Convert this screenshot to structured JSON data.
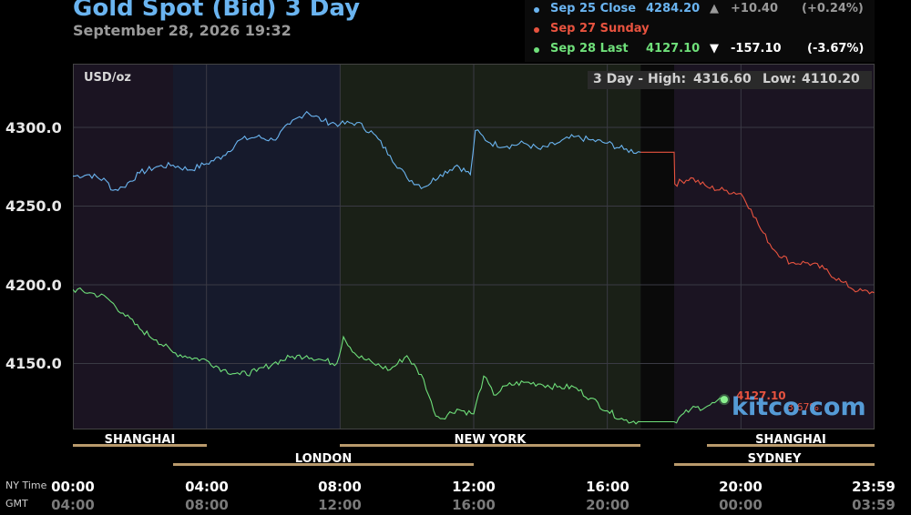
{
  "header": {
    "title": "Gold Spot (Bid) 3 Day",
    "timestamp": "September 28, 2026 19:32"
  },
  "legend": [
    {
      "label": "Sep 25 Close",
      "price": "4284.20",
      "arrow": "▲",
      "change": "+10.40",
      "pct": "(+0.24%)",
      "color": "#6ab4f0"
    },
    {
      "label": "Sep 27 Sunday",
      "price": "",
      "arrow": "",
      "change": "",
      "pct": "",
      "color": "#e8533f"
    },
    {
      "label": "Sep 28 Last",
      "price": "4127.10",
      "arrow": "▼",
      "change": "-157.10",
      "pct": "(-3.67%)",
      "color": "#6fe07a"
    }
  ],
  "plot": {
    "unit": "USD/oz",
    "range_label": "3 Day - High:",
    "high": "4316.60",
    "low_label": "Low:",
    "low": "4110.20",
    "watermark": "kitco.com",
    "last_label": "4127.10",
    "last_pct": "-3.67%"
  },
  "markets": {
    "shanghai": "SHANGHAI",
    "new_york": "NEW YORK",
    "shanghai_2": "SHANGHAI",
    "london": "LONDON",
    "sydney": "SYDNEY"
  },
  "axis": {
    "ny_label": "NY Time",
    "gmt_label": "GMT",
    "ny_ticks": [
      "00:00",
      "04:00",
      "08:00",
      "12:00",
      "16:00",
      "20:00",
      "23:59"
    ],
    "gmt_ticks": [
      "04:00",
      "08:00",
      "12:00",
      "16:00",
      "20:00",
      "00:00",
      "03:59"
    ]
  },
  "chart_data": {
    "type": "line",
    "title": "Gold Spot (Bid) 3 Day",
    "ylabel": "USD/oz",
    "xlabel": "NY Time",
    "ylim": [
      4100,
      4335
    ],
    "xlim": [
      0,
      24
    ],
    "yticks": [
      4150.0,
      4200.0,
      4250.0,
      4300.0
    ],
    "grid": true,
    "legend_position": "top-right",
    "series": [
      {
        "name": "Sep 25 Close",
        "color": "#6ab4f0",
        "x": [
          0,
          0.5,
          1,
          1.2,
          1.5,
          2,
          2.5,
          3,
          3.5,
          4,
          4.5,
          5,
          5.5,
          6,
          6.5,
          7,
          7.5,
          8,
          8.5,
          9,
          9.5,
          10,
          10.5,
          11,
          11.5,
          11.9,
          12.05,
          12.5,
          13,
          13.5,
          14,
          14.5,
          15,
          15.5,
          16,
          16.5,
          17
        ],
        "y": [
          4269,
          4270,
          4266,
          4260,
          4262,
          4271,
          4275,
          4276,
          4273,
          4277,
          4282,
          4292,
          4294,
          4292,
          4302,
          4310,
          4304,
          4302,
          4303,
          4296,
          4282,
          4268,
          4262,
          4270,
          4276,
          4270,
          4298,
          4290,
          4288,
          4290,
          4286,
          4290,
          4294,
          4292,
          4290,
          4286,
          4284.2
        ]
      },
      {
        "name": "Sep 27 Sunday",
        "color": "#e8533f",
        "x": [
          17,
          18,
          18.02,
          18.5,
          19,
          19.5,
          20,
          20.3,
          20.6,
          21,
          21.5,
          22,
          22.5,
          23,
          23.5,
          23.99
        ],
        "y": [
          4284.2,
          4284.2,
          4264,
          4268,
          4262,
          4260,
          4258,
          4248,
          4235,
          4222,
          4214,
          4214,
          4210,
          4202,
          4196,
          4195
        ]
      },
      {
        "name": "Sep 28 Last",
        "color": "#6fe07a",
        "x": [
          0,
          0.5,
          1,
          1.5,
          2,
          2.5,
          3,
          3.5,
          4,
          4.5,
          5,
          5.5,
          6,
          6.5,
          7,
          7.5,
          7.9,
          8.1,
          8.5,
          9,
          9.5,
          10,
          10.5,
          10.8,
          11,
          11.5,
          12,
          12.3,
          12.6,
          13,
          13.5,
          14,
          14.5,
          15,
          15.5,
          16,
          16.5,
          17,
          18,
          18.5,
          19,
          19.5
        ],
        "y": [
          4197,
          4195,
          4192,
          4182,
          4172,
          4165,
          4157,
          4154,
          4152,
          4146,
          4143,
          4145,
          4150,
          4154,
          4155,
          4152,
          4150,
          4167,
          4155,
          4150,
          4146,
          4155,
          4140,
          4120,
          4115,
          4121,
          4118,
          4142,
          4130,
          4136,
          4138,
          4137,
          4135,
          4135,
          4128,
          4120,
          4114,
          4113,
          4113,
          4121,
          4123,
          4127.1
        ]
      }
    ]
  }
}
